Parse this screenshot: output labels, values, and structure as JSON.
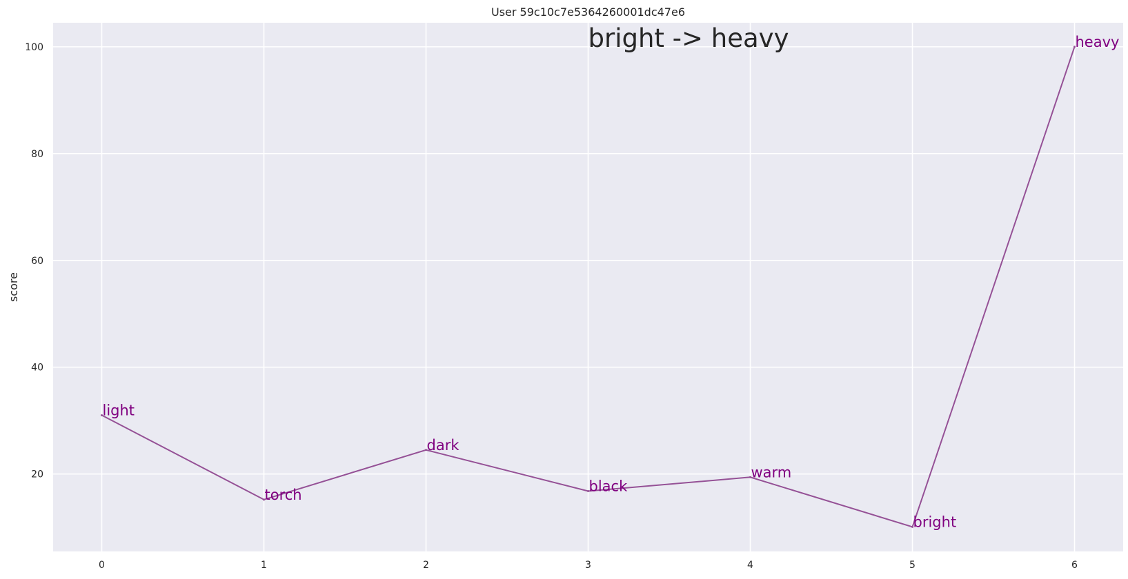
{
  "chart_data": {
    "type": "line",
    "title": "User 59c10c7e5364260001dc47e6",
    "xlabel": "",
    "ylabel": "score",
    "annotation": "bright -> heavy",
    "x": [
      0,
      1,
      2,
      3,
      4,
      5,
      6
    ],
    "series": [
      {
        "values": [
          31,
          15.2,
          24.5,
          16.8,
          19.4,
          10.1,
          100
        ],
        "labels": [
          "light",
          "torch",
          "dark",
          "black",
          "warm",
          "bright",
          "heavy"
        ]
      }
    ],
    "xticks": [
      0,
      1,
      2,
      3,
      4,
      5,
      6
    ],
    "yticks": [
      20,
      40,
      60,
      80,
      100
    ],
    "xlim": [
      -0.3,
      6.3
    ],
    "ylim": [
      5.5,
      104.5
    ],
    "grid": true,
    "colors": {
      "background": "#eaeaf2",
      "grid": "#ffffff",
      "line": "#955196",
      "label": "#800080"
    }
  }
}
